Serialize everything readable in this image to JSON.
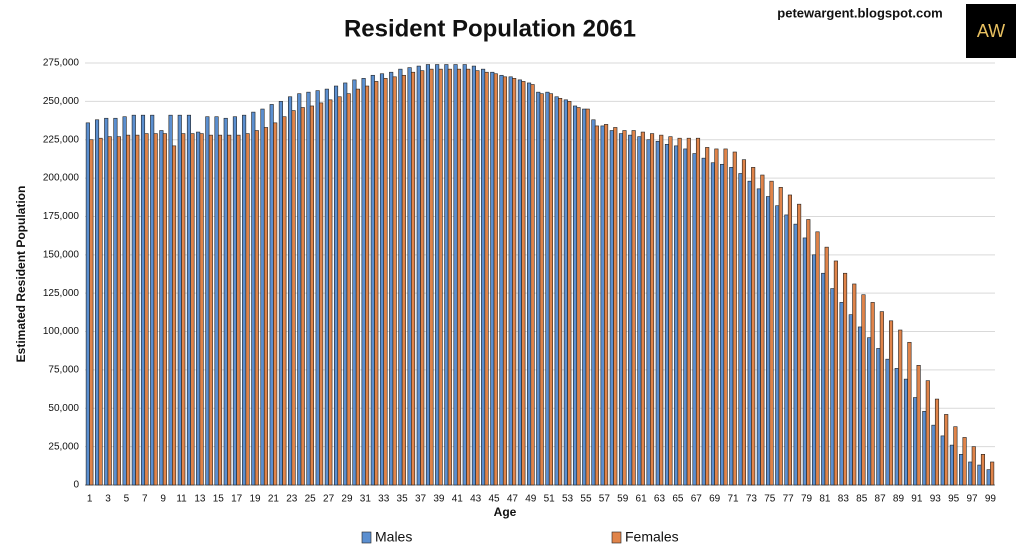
{
  "chart_data": {
    "type": "bar",
    "title": "Resident Population 2061",
    "source": "petewargent.blogspot.com",
    "logo": "AW",
    "x_label": "Age",
    "y_label": "Estimated Resident Population",
    "categories": [
      1,
      null,
      3,
      null,
      5,
      null,
      7,
      null,
      9,
      null,
      11,
      null,
      13,
      null,
      15,
      null,
      17,
      null,
      19,
      null,
      21,
      null,
      23,
      null,
      25,
      null,
      27,
      null,
      29,
      null,
      31,
      null,
      33,
      null,
      35,
      null,
      37,
      null,
      39,
      null,
      41,
      null,
      43,
      null,
      45,
      null,
      47,
      null,
      49,
      null,
      51,
      null,
      53,
      null,
      55,
      null,
      57,
      null,
      59,
      null,
      61,
      null,
      63,
      null,
      65,
      null,
      67,
      null,
      69,
      null,
      71,
      null,
      73,
      null,
      75,
      null,
      77,
      null,
      79,
      null,
      81,
      null,
      83,
      null,
      85,
      null,
      87,
      null,
      89,
      null,
      91,
      null,
      93,
      null,
      95,
      null,
      97,
      null,
      99
    ],
    "series": [
      {
        "name": "Males",
        "color": "#5b8fd0",
        "values": [
          236000,
          238000,
          239000,
          239000,
          240000,
          241000,
          241000,
          241000,
          231000,
          241000,
          241000,
          241000,
          230000,
          240000,
          240000,
          239000,
          240000,
          241000,
          243000,
          245000,
          248000,
          250000,
          253000,
          255000,
          256000,
          257000,
          258000,
          260000,
          262000,
          264000,
          265000,
          267000,
          268000,
          269000,
          271000,
          272000,
          273000,
          274000,
          274000,
          274000,
          274000,
          274000,
          273000,
          271000,
          269000,
          267000,
          266000,
          264000,
          262000,
          256000,
          256000,
          253000,
          251000,
          247000,
          245000,
          238000,
          234000,
          231000,
          229000,
          228000,
          227000,
          225000,
          224000,
          222000,
          221000,
          219000,
          216000,
          213000,
          210000,
          209000,
          207000,
          203000,
          198000,
          193000,
          188000,
          182000,
          176000,
          170000,
          161000,
          150000,
          138000,
          128000,
          119000,
          111000,
          103000,
          96000,
          89000,
          82000,
          76000,
          69000,
          57000,
          48000,
          39000,
          32000,
          26000,
          20000,
          15000,
          13000,
          10000
        ]
      },
      {
        "name": "Females",
        "color": "#e0844a",
        "values": [
          225000,
          226000,
          227000,
          227000,
          228000,
          228000,
          229000,
          229000,
          229000,
          221000,
          229000,
          229000,
          229000,
          228000,
          228000,
          228000,
          228000,
          229000,
          231000,
          233000,
          236000,
          240000,
          244000,
          246000,
          247000,
          249000,
          251000,
          253000,
          255000,
          258000,
          260000,
          263000,
          265000,
          266000,
          267000,
          269000,
          270000,
          271000,
          271000,
          271000,
          271000,
          271000,
          270000,
          269000,
          268000,
          266000,
          265000,
          263000,
          261000,
          255000,
          255000,
          252000,
          250000,
          246000,
          245000,
          234000,
          235000,
          233000,
          231000,
          231000,
          230000,
          229000,
          228000,
          227000,
          226000,
          226000,
          226000,
          220000,
          219000,
          219000,
          217000,
          212000,
          207000,
          202000,
          198000,
          194000,
          189000,
          183000,
          173000,
          165000,
          155000,
          146000,
          138000,
          131000,
          124000,
          119000,
          113000,
          107000,
          101000,
          93000,
          78000,
          68000,
          56000,
          46000,
          38000,
          31000,
          25000,
          20000,
          15000
        ]
      }
    ],
    "ylim": [
      0,
      275000
    ],
    "yticks": [
      0,
      {
        "value": 25000,
        "label": "25,000"
      },
      {
        "value": 50000,
        "label": "50,000"
      },
      {
        "value": 75000,
        "label": "75,000"
      },
      {
        "value": 100000,
        "label": "100,000"
      },
      {
        "value": 125000,
        "label": "125,000"
      },
      {
        "value": 150000,
        "label": "150,000"
      },
      {
        "value": 175000,
        "label": "175,000"
      },
      {
        "value": 200000,
        "label": "200,000"
      },
      {
        "value": 225000,
        "label": "225,000"
      },
      {
        "value": 250000,
        "label": "250,000"
      },
      {
        "value": 275000,
        "label": "275,000"
      }
    ],
    "grid": true
  }
}
